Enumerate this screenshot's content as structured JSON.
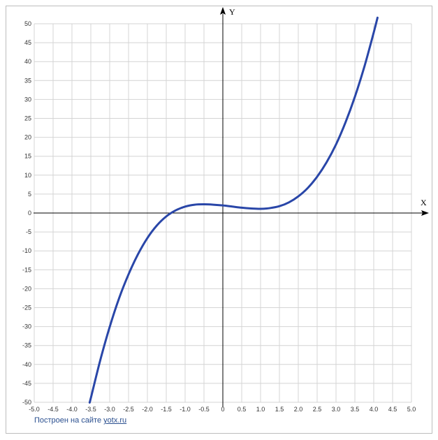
{
  "chart_data": {
    "type": "line",
    "title": "",
    "xlabel": "X",
    "ylabel": "Y",
    "xlim": [
      -5,
      5
    ],
    "ylim": [
      -50,
      50
    ],
    "grid": true,
    "x_ticks": [
      -5.0,
      -4.5,
      -4.0,
      -3.5,
      -3.0,
      -2.5,
      -2.0,
      -1.5,
      -1.0,
      -0.5,
      0,
      0.5,
      1.0,
      1.5,
      2.0,
      2.5,
      3.0,
      3.5,
      4.0,
      4.5,
      5.0
    ],
    "x_tick_labels": [
      "-5.0",
      "-4.5",
      "-4.0",
      "-3.5",
      "-3.0",
      "-2.5",
      "-2.0",
      "-1.5",
      "-1.0",
      "-0.5",
      "0",
      "0.5",
      "1.0",
      "1.5",
      "2.0",
      "2.5",
      "3.0",
      "3.5",
      "4.0",
      "4.5",
      "5.0"
    ],
    "y_ticks": [
      50,
      45,
      40,
      35,
      30,
      25,
      20,
      15,
      10,
      5,
      0,
      -5,
      -10,
      -15,
      -20,
      -25,
      -30,
      -35,
      -40,
      -45,
      -50
    ],
    "y_tick_labels": [
      "50",
      "45",
      "40",
      "35",
      "30",
      "25",
      "20",
      "15",
      "10",
      "5",
      "0",
      "-5",
      "-10",
      "-15",
      "-20",
      "-25",
      "-30",
      "-35",
      "-40",
      "-45",
      "-50"
    ],
    "series": [
      {
        "color": "#2946a8",
        "x": [
          -3.53,
          -3.5,
          -3.25,
          -3.0,
          -2.75,
          -2.5,
          -2.25,
          -2.0,
          -1.75,
          -1.5,
          -1.25,
          -1.0,
          -0.75,
          -0.5,
          -0.25,
          0,
          0.25,
          0.5,
          0.75,
          1.0,
          1.25,
          1.5,
          1.75,
          2.0,
          2.25,
          2.5,
          2.75,
          3.0,
          3.25,
          3.5,
          3.75,
          4.0,
          4.1
        ],
        "y": [
          -50.0,
          -48.9,
          -38.9,
          -30.1,
          -22.5,
          -16.2,
          -10.9,
          -6.6,
          -3.3,
          -0.9,
          0.7,
          1.7,
          2.2,
          2.3,
          2.2,
          2.0,
          1.7,
          1.4,
          1.2,
          1.1,
          1.3,
          1.8,
          2.8,
          4.4,
          6.6,
          9.6,
          13.4,
          18.1,
          23.9,
          30.7,
          38.6,
          47.7,
          51.6
        ]
      }
    ]
  },
  "credit": {
    "text": "Построен на сайте",
    "link": "yotx.ru"
  }
}
